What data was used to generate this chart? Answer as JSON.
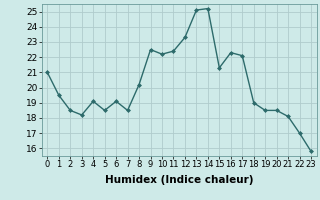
{
  "x": [
    0,
    1,
    2,
    3,
    4,
    5,
    6,
    7,
    8,
    9,
    10,
    11,
    12,
    13,
    14,
    15,
    16,
    17,
    18,
    19,
    20,
    21,
    22,
    23
  ],
  "y": [
    21.0,
    19.5,
    18.5,
    18.2,
    19.1,
    18.5,
    19.1,
    18.5,
    20.2,
    22.5,
    22.2,
    22.4,
    23.3,
    25.1,
    25.2,
    21.3,
    22.3,
    22.1,
    19.0,
    18.5,
    18.5,
    18.1,
    17.0,
    15.8
  ],
  "line_color": "#2d6b6b",
  "marker": "D",
  "marker_size": 2.0,
  "bg_color": "#ceeae8",
  "grid_color": "#b0cccc",
  "xlabel": "Humidex (Indice chaleur)",
  "xlabel_fontsize": 7.5,
  "xtick_labels": [
    "0",
    "1",
    "2",
    "3",
    "4",
    "5",
    "6",
    "7",
    "8",
    "9",
    "10",
    "11",
    "12",
    "13",
    "14",
    "15",
    "16",
    "17",
    "18",
    "19",
    "20",
    "21",
    "22",
    "23"
  ],
  "ylim": [
    15.5,
    25.5
  ],
  "yticks": [
    16,
    17,
    18,
    19,
    20,
    21,
    22,
    23,
    24,
    25
  ],
  "xlim": [
    -0.5,
    23.5
  ]
}
